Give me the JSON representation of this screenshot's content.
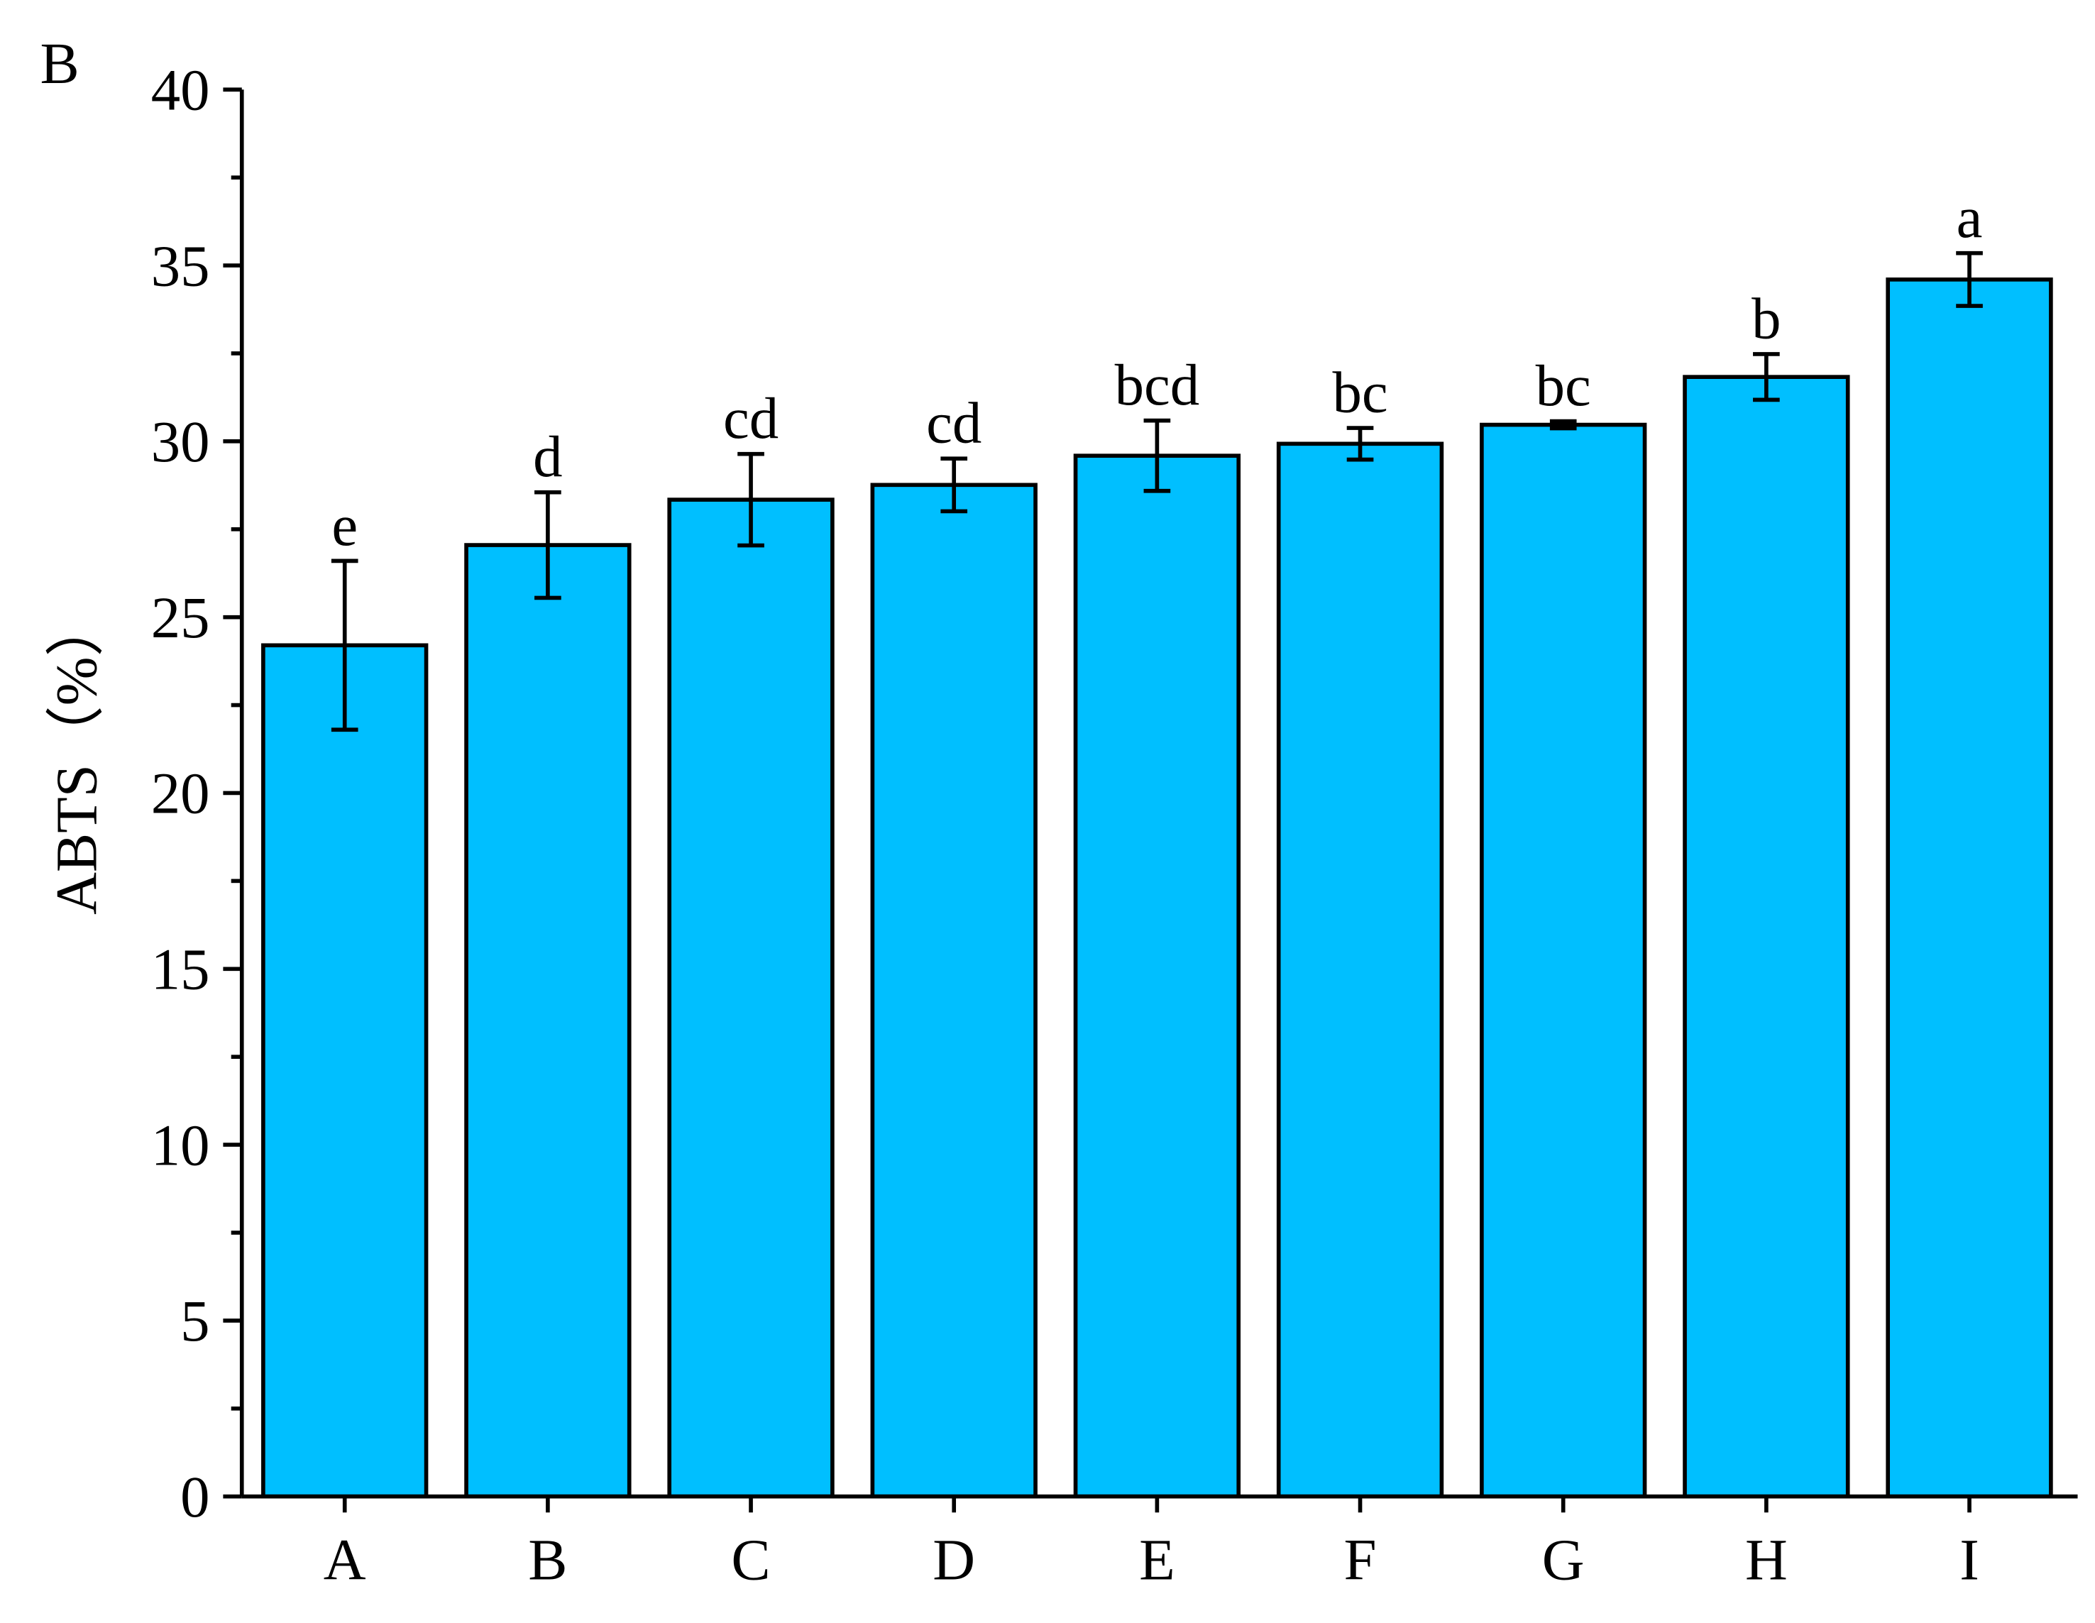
{
  "chart_data": {
    "type": "bar",
    "title": "B",
    "y_label": "ABTS（%）",
    "categories": [
      "A",
      "B",
      "C",
      "D",
      "E",
      "F",
      "G",
      "H",
      "I"
    ],
    "values": [
      24.2,
      27.05,
      28.34,
      28.76,
      29.59,
      29.93,
      30.47,
      31.83,
      34.6
    ],
    "errors": [
      2.4,
      1.5,
      1.3,
      0.75,
      1.0,
      0.45,
      0.1,
      0.65,
      0.75
    ],
    "annotations": [
      "e",
      "d",
      "cd",
      "cd",
      "bcd",
      "bc",
      "bc",
      "b",
      "a"
    ],
    "color": "#00bfff",
    "ylim": [
      0,
      40
    ],
    "yticks": [
      0,
      5,
      10,
      15,
      20,
      25,
      30,
      35,
      40
    ],
    "yticks_minor": [
      2.5,
      7.5,
      12.5,
      17.5,
      22.5,
      27.5,
      32.5,
      37.5
    ],
    "grid": false
  }
}
